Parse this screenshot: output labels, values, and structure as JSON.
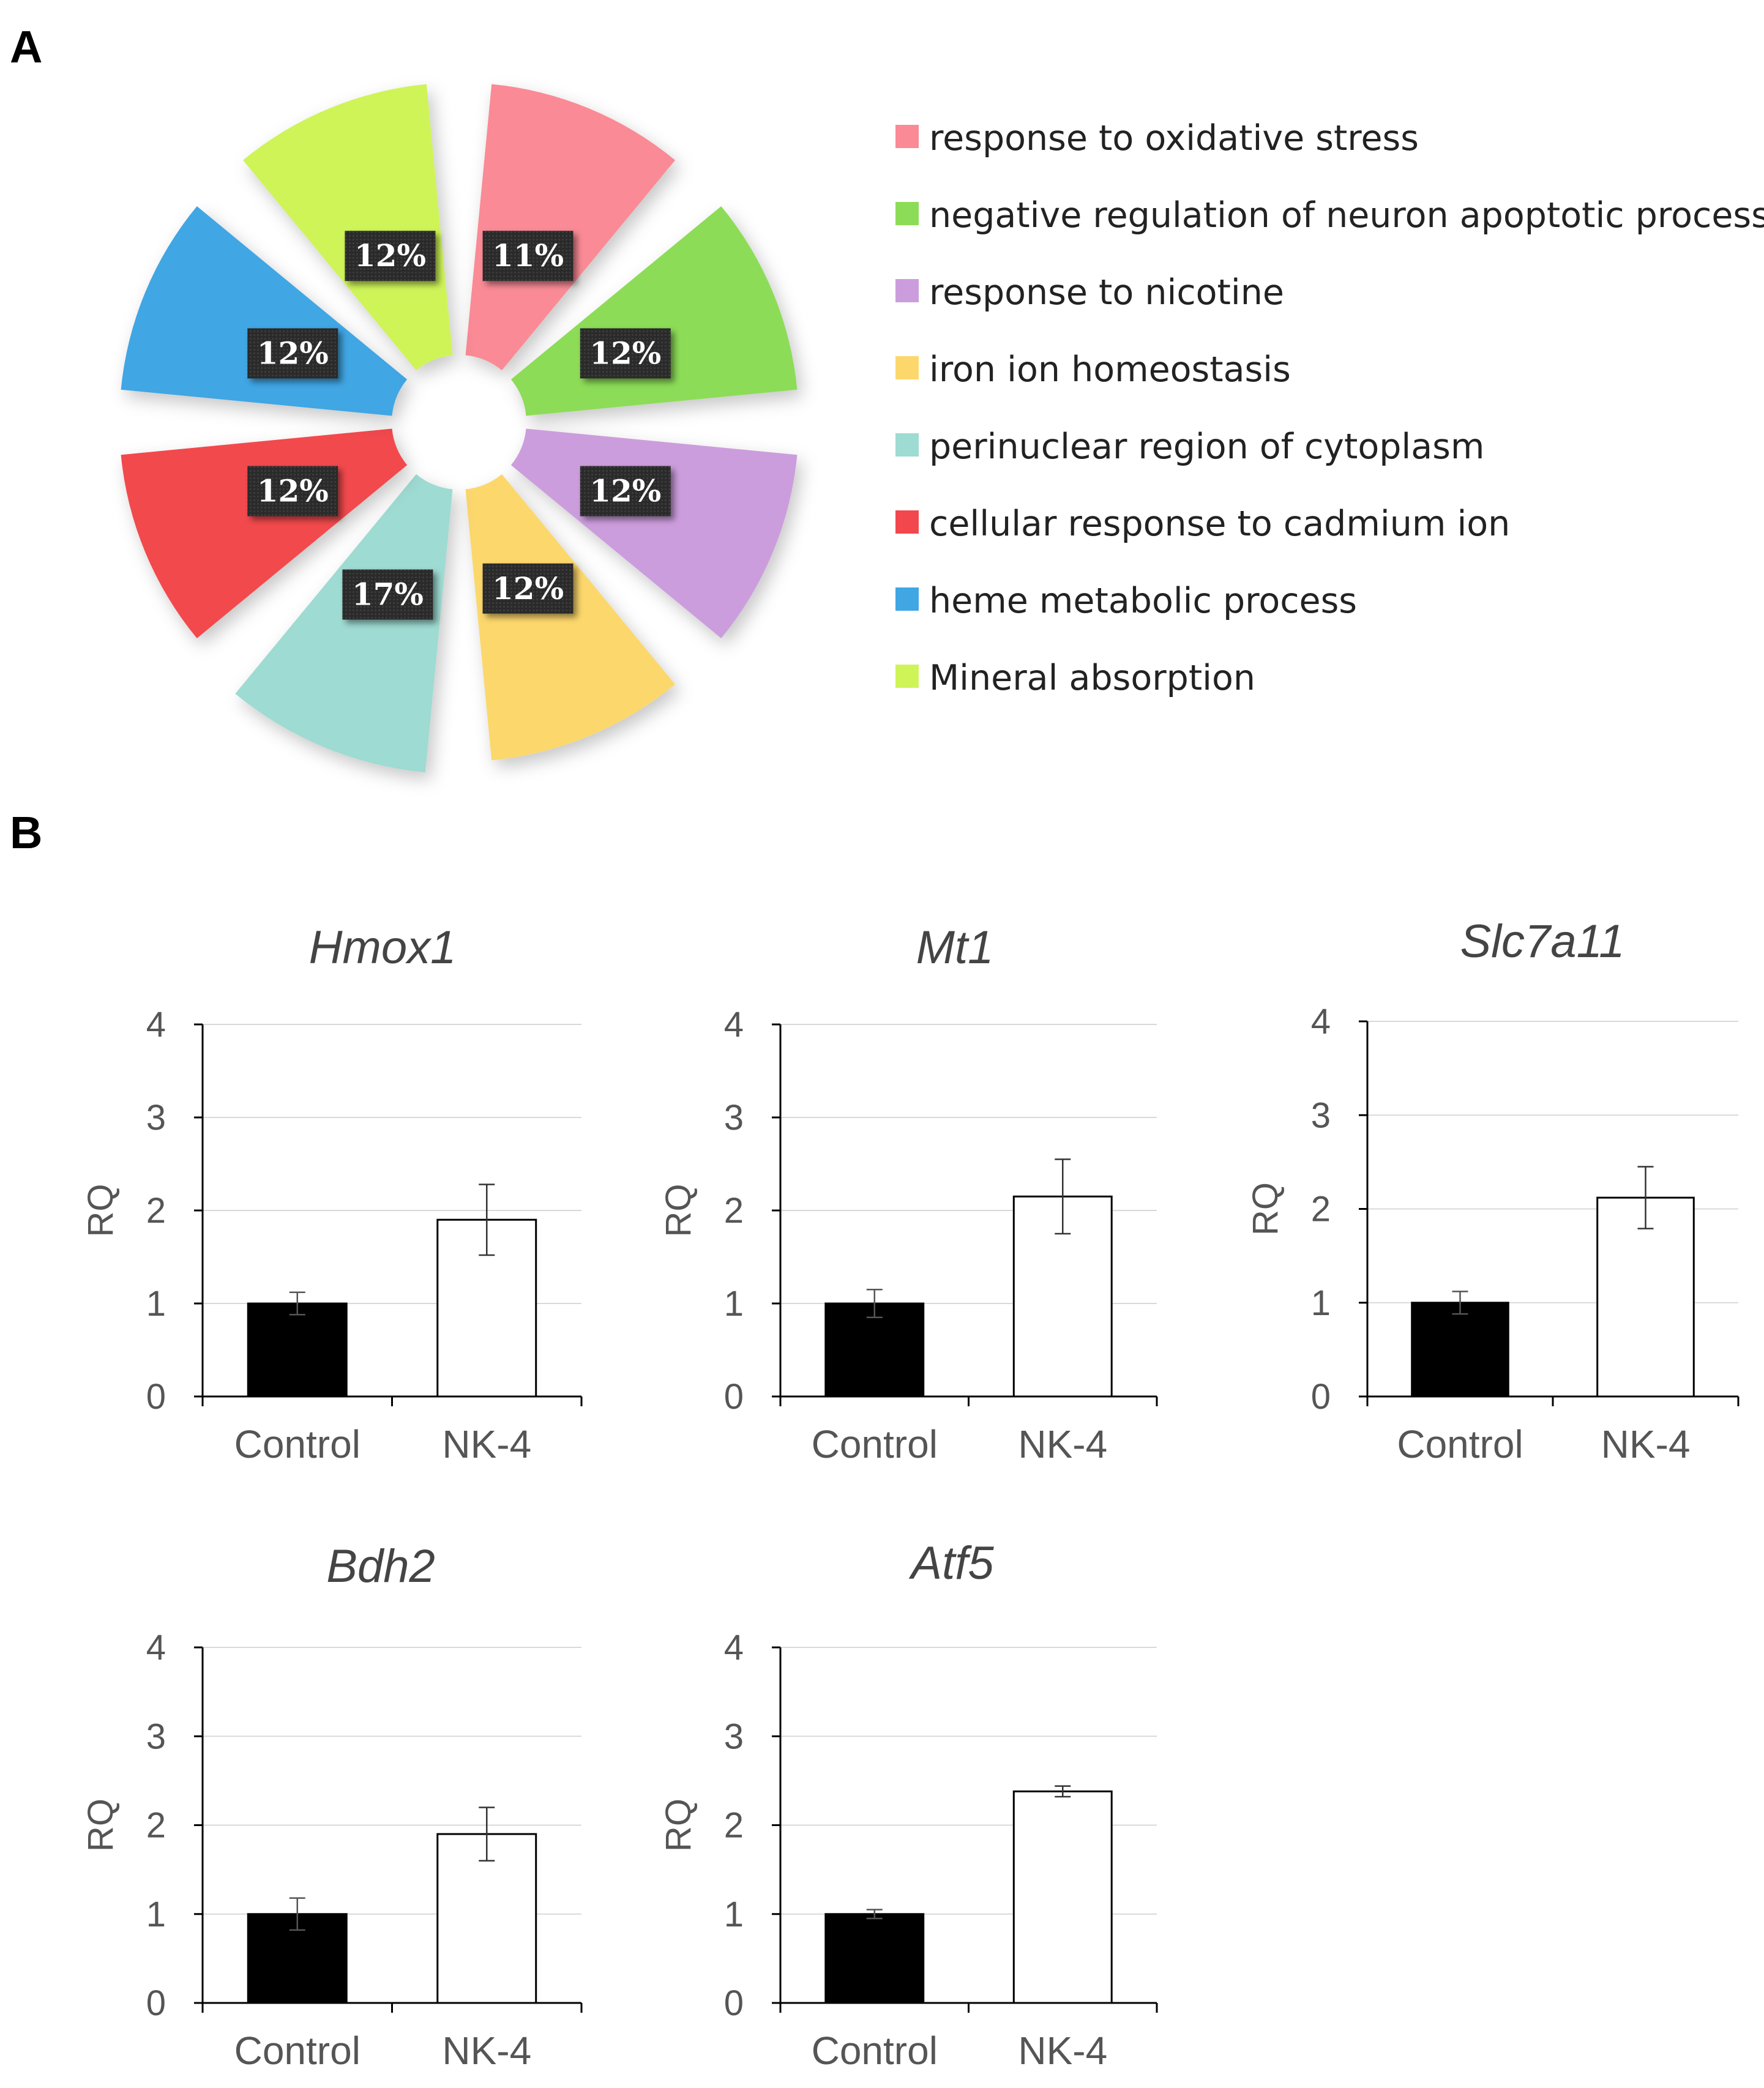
{
  "panels": {
    "a": "A",
    "b": "B"
  },
  "chart_data": [
    {
      "type": "pie",
      "labels": [
        "response to oxidative stress",
        "negative regulation of neuron apoptotic process",
        "response to nicotine",
        "iron ion homeostasis",
        "perinuclear region of cytoplasm",
        "cellular response to cadmium ion",
        "heme metabolic process",
        "Mineral absorption"
      ],
      "values": [
        11,
        12,
        12,
        12,
        17,
        12,
        12,
        12
      ],
      "value_labels": [
        "11%",
        "12%",
        "12%",
        "12%",
        "17%",
        "12%",
        "12%",
        "12%"
      ],
      "colors": [
        "#fa8a95",
        "#8ddc58",
        "#cc9ddd",
        "#fcd76c",
        "#9edbd2",
        "#f2484d",
        "#40a6e4",
        "#cef458"
      ],
      "legend_position": "right"
    },
    {
      "type": "bar",
      "title": "Hmox1",
      "ylabel": "RQ",
      "ylim": [
        0,
        4
      ],
      "yticks": [
        "0",
        "1",
        "2",
        "3",
        "4"
      ],
      "categories": [
        "Control",
        "NK-4"
      ],
      "values": [
        1.0,
        1.9
      ],
      "errors": [
        0.12,
        0.38
      ],
      "bar_colors": [
        "#000000",
        "#ffffff"
      ],
      "grid": true
    },
    {
      "type": "bar",
      "title": "Mt1",
      "ylabel": "RQ",
      "ylim": [
        0,
        4
      ],
      "yticks": [
        "0",
        "1",
        "2",
        "3",
        "4"
      ],
      "categories": [
        "Control",
        "NK-4"
      ],
      "values": [
        1.0,
        2.15
      ],
      "errors": [
        0.15,
        0.4
      ],
      "bar_colors": [
        "#000000",
        "#ffffff"
      ],
      "grid": true
    },
    {
      "type": "bar",
      "title": "Slc7a11",
      "ylabel": "RQ",
      "ylim": [
        0,
        4
      ],
      "yticks": [
        "0",
        "1",
        "2",
        "3",
        "4"
      ],
      "categories": [
        "Control",
        "NK-4"
      ],
      "values": [
        1.0,
        2.12
      ],
      "errors": [
        0.12,
        0.33
      ],
      "bar_colors": [
        "#000000",
        "#ffffff"
      ],
      "grid": true
    },
    {
      "type": "bar",
      "title": "Bdh2",
      "ylabel": "RQ",
      "ylim": [
        0,
        4
      ],
      "yticks": [
        "0",
        "1",
        "2",
        "3",
        "4"
      ],
      "categories": [
        "Control",
        "NK-4"
      ],
      "values": [
        1.0,
        1.9
      ],
      "errors": [
        0.18,
        0.3
      ],
      "bar_colors": [
        "#000000",
        "#ffffff"
      ],
      "grid": true
    },
    {
      "type": "bar",
      "title": "Atf5",
      "ylabel": "RQ",
      "ylim": [
        0,
        4
      ],
      "yticks": [
        "0",
        "1",
        "2",
        "3",
        "4"
      ],
      "categories": [
        "Control",
        "NK-4"
      ],
      "values": [
        1.0,
        2.38
      ],
      "errors": [
        0.05,
        0.06
      ],
      "bar_colors": [
        "#000000",
        "#ffffff"
      ],
      "grid": true
    }
  ]
}
